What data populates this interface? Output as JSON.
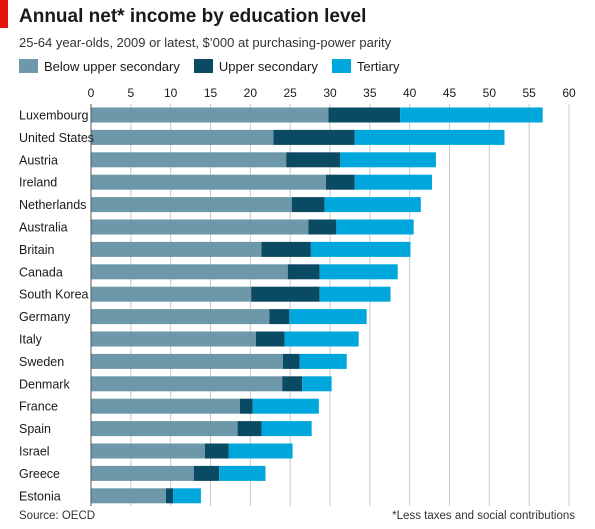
{
  "header": {
    "title": "Annual net* income by education level",
    "subtitle": "25-64 year-olds, 2009 or latest, $’000 at purchasing-power parity"
  },
  "footer": {
    "source": "Source: OECD",
    "footnote": "*Less taxes and social contributions"
  },
  "colors": {
    "below_upper_secondary": "#6c98a9",
    "upper_secondary": "#0b4a63",
    "tertiary": "#00a7dc",
    "accent": "#e3120b",
    "gridline": "#c8c8c8"
  },
  "chart_data": {
    "type": "bar",
    "orientation": "horizontal",
    "stacked": true,
    "title": "Annual net* income by education level",
    "subtitle": "25-64 year-olds, 2009 or latest, $’000 at purchasing-power parity",
    "xlim": [
      0,
      60
    ],
    "xticks": [
      "0",
      "5",
      "10",
      "15",
      "20",
      "25",
      "30",
      "35",
      "40",
      "45",
      "50",
      "55",
      "60"
    ],
    "grid": true,
    "legend_position": "top-left",
    "categories": [
      "Luxembourg",
      "United States",
      "Austria",
      "Ireland",
      "Netherlands",
      "Australia",
      "Britain",
      "Canada",
      "South Korea",
      "Germany",
      "Italy",
      "Sweden",
      "Denmark",
      "France",
      "Spain",
      "Israel",
      "Greece",
      "Estonia"
    ],
    "series": [
      {
        "name": "Below upper secondary",
        "color": "#6c98a9",
        "values": [
          29.8,
          22.9,
          24.5,
          29.5,
          25.2,
          27.3,
          21.4,
          24.7,
          20.1,
          22.4,
          20.7,
          24.1,
          24.0,
          18.7,
          18.4,
          14.3,
          12.9,
          9.4
        ]
      },
      {
        "name": "Upper secondary",
        "color": "#0b4a63",
        "values": [
          9.0,
          10.2,
          6.8,
          3.6,
          4.1,
          3.5,
          6.2,
          4.0,
          8.6,
          2.5,
          3.6,
          2.1,
          2.5,
          1.6,
          3.0,
          3.0,
          3.2,
          0.9
        ]
      },
      {
        "name": "Tertiary",
        "color": "#00a7dc",
        "values": [
          17.9,
          18.8,
          12.0,
          9.7,
          12.1,
          9.7,
          12.5,
          9.8,
          8.9,
          9.7,
          9.3,
          5.9,
          3.7,
          8.3,
          6.3,
          8.0,
          5.8,
          3.5
        ]
      }
    ]
  }
}
